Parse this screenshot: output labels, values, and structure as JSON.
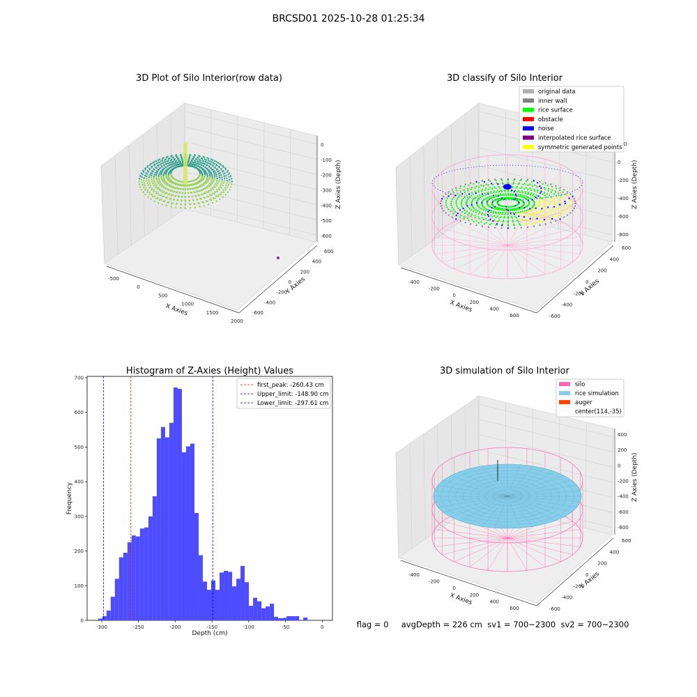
{
  "figure": {
    "title": "BRCSD01 2025-10-28 01:25:34",
    "footer": "flag = 0     avgDepth = 226 cm  sv1 = 700~2300  sv2 = 700~2300"
  },
  "plot_raw": {
    "title": "3D Plot of Silo Interior(row data)",
    "xlabel": "X Axies",
    "ylabel": "Y Axies",
    "zlabel": "Z Axies (Depth)",
    "x_ticks": [
      "-500",
      "0",
      "500",
      "1000",
      "1500",
      "2000"
    ],
    "y_ticks": [
      "-600",
      "-400",
      "-200",
      "0",
      "200",
      "400",
      "600"
    ],
    "z_ticks": [
      "0",
      "-100",
      "-200",
      "-300",
      "-400",
      "-500",
      "-600"
    ],
    "colors": {
      "surface_light": "#8fd14f",
      "surface_dark": "#2a9c8a",
      "outlier": "#7b3294"
    }
  },
  "plot_classify": {
    "title": "3D classify of Silo Interior",
    "xlabel": "X Axies",
    "ylabel": "Y Axies",
    "zlabel": "Z Axies (Depth)",
    "x_ticks": [
      "-400",
      "-200",
      "0",
      "200",
      "400",
      "600"
    ],
    "y_ticks": [
      "-600",
      "-400",
      "-200",
      "0",
      "200",
      "400",
      "600"
    ],
    "z_ticks": [
      "200",
      "0",
      "-200",
      "-400",
      "-600",
      "-800"
    ],
    "legend": [
      {
        "label": "original data",
        "color": "#b0b0b0"
      },
      {
        "label": "inner wall",
        "color": "#808080"
      },
      {
        "label": "rice surface",
        "color": "#00ff00"
      },
      {
        "label": "obstacle",
        "color": "#ff0000"
      },
      {
        "label": "noise",
        "color": "#0000ff"
      },
      {
        "label": "interpolated rice surface",
        "color": "#800080"
      },
      {
        "label": "symmetric generated points",
        "color": "#ffff00"
      }
    ],
    "colors": {
      "silo_wire": "#ff9fcf"
    }
  },
  "plot_sim": {
    "title": "3D simulation of Silo Interior",
    "xlabel": "X Axies",
    "ylabel": "Y Axies",
    "zlabel": "Z Axies (Depth)",
    "x_ticks": [
      "-400",
      "-200",
      "0",
      "200",
      "400",
      "600"
    ],
    "y_ticks": [
      "-600",
      "-400",
      "-200",
      "0",
      "200",
      "400",
      "600"
    ],
    "z_ticks": [
      "400",
      "200",
      "0",
      "-200",
      "-400",
      "-600",
      "-800"
    ],
    "legend": [
      {
        "label": "silo",
        "color": "#ff69b4"
      },
      {
        "label": "rice simulation",
        "color": "#87ceeb"
      },
      {
        "label": "auger",
        "color": "#ff4500"
      },
      {
        "label": "center(114,-35)",
        "color": ""
      }
    ]
  },
  "chart_data": {
    "type": "bar",
    "title": "Histogram of Z-Axies (Height) Values",
    "xlabel": "Depth (cm)",
    "ylabel": "Frequency",
    "xlim": [
      -320,
      0
    ],
    "ylim": [
      0,
      700
    ],
    "x_ticks": [
      -300,
      -250,
      -200,
      -150,
      -100,
      -50,
      0
    ],
    "y_ticks": [
      0,
      100,
      200,
      300,
      400,
      500,
      600,
      700
    ],
    "bar_color": "#4d4dff",
    "bin_start": -305,
    "bin_width": 5.7,
    "values": [
      5,
      12,
      28,
      68,
      120,
      182,
      195,
      225,
      245,
      242,
      265,
      268,
      300,
      358,
      525,
      558,
      528,
      570,
      672,
      668,
      485,
      502,
      510,
      310,
      188,
      112,
      88,
      115,
      88,
      138,
      143,
      140,
      98,
      120,
      157,
      110,
      42,
      65,
      55,
      35,
      40,
      48,
      10,
      6,
      7,
      12,
      12,
      12,
      0,
      8
    ],
    "vlines": [
      {
        "label": "first_peak: -260.43 cm",
        "x": -260.43,
        "color": "#ff0000"
      },
      {
        "label": "Upper_limit: -148.90 cm",
        "x": -148.9,
        "color": "#0000ff"
      },
      {
        "label": "Lower_limit: -297.61 cm",
        "x": -297.61,
        "color": "#0000ff"
      }
    ],
    "legend_position": "upper right"
  }
}
